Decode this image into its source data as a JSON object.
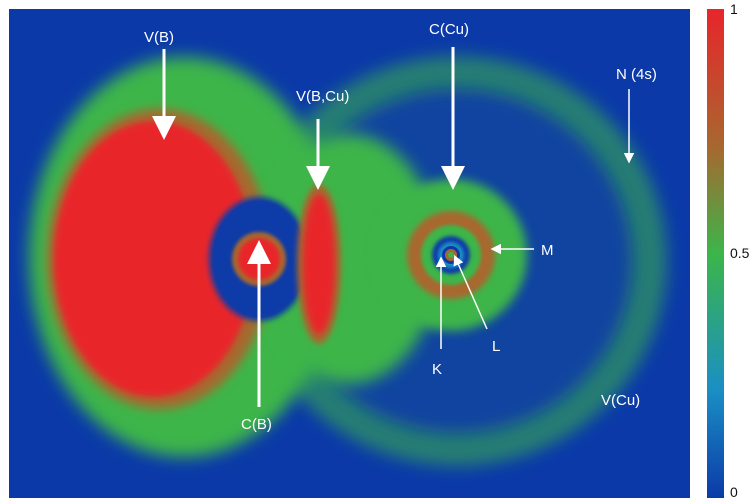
{
  "image": {
    "subject": "electron localization function map, B–Cu",
    "colors": {
      "low": "#0b3aa8",
      "mid": "#3cb54a",
      "high": "#e8252b",
      "brown_ring": "#a8672f"
    }
  },
  "labels": {
    "vb": "V(B)",
    "vbcu": "V(B,Cu)",
    "ccu": "C(Cu)",
    "n4s": "N  (4s)",
    "m": "M",
    "l": "L",
    "k": "K",
    "cb": "C(B)",
    "vcu": "V(Cu)"
  },
  "colorbar": {
    "tick_top": "1",
    "tick_mid": "0.5",
    "tick_bottom": "0"
  }
}
